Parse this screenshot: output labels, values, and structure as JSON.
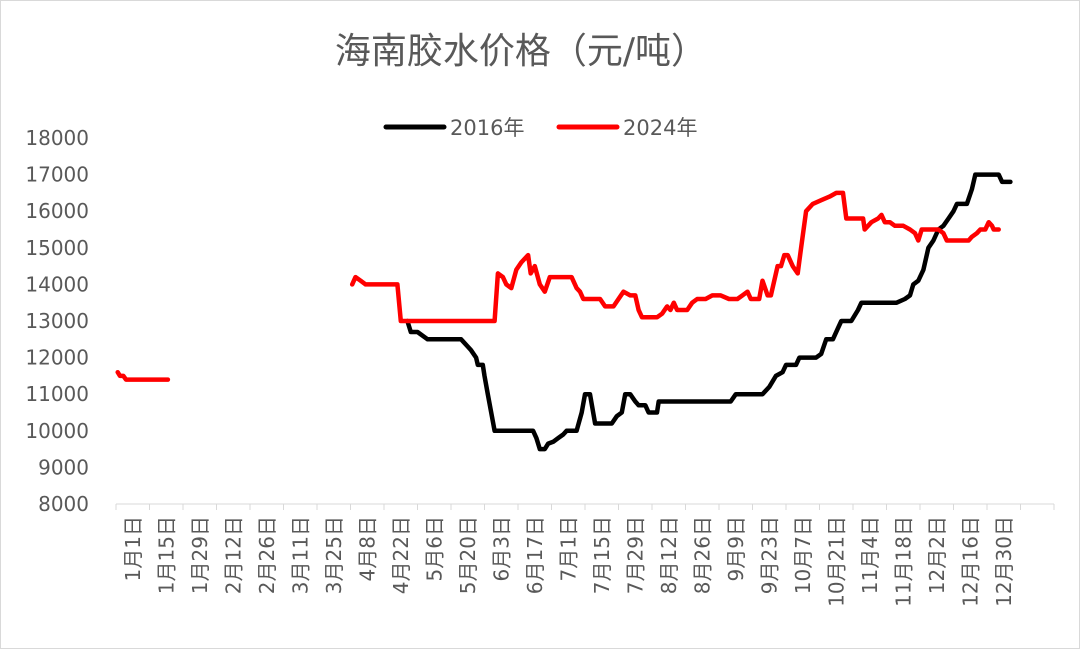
{
  "chart_data": {
    "type": "line",
    "title": "海南胶水价格（元/吨）",
    "xlabel": "",
    "ylabel": "",
    "ylim": [
      8000,
      18000
    ],
    "yticks": [
      8000,
      9000,
      10000,
      11000,
      12000,
      13000,
      14000,
      15000,
      16000,
      17000,
      18000
    ],
    "xlim": [
      0,
      28
    ],
    "x_unit": "dates, one slot per category",
    "categories": [
      "1月1日",
      "1月15日",
      "1月29日",
      "2月12日",
      "2月26日",
      "3月11日",
      "3月25日",
      "4月8日",
      "4月22日",
      "5月6日",
      "5月20日",
      "6月3日",
      "6月17日",
      "7月1日",
      "7月15日",
      "7月29日",
      "8月12日",
      "8月26日",
      "9月9日",
      "9月23日",
      "10月7日",
      "10月21日",
      "11月4日",
      "11月18日",
      "12月2日",
      "12月16日",
      "12月30日"
    ],
    "gridlines": false,
    "legend_position": "top",
    "series": [
      {
        "name": "2016年",
        "color": "#000000",
        "points": [
          [
            8.7,
            13000
          ],
          [
            8.8,
            12700
          ],
          [
            9.0,
            12700
          ],
          [
            9.3,
            12500
          ],
          [
            9.6,
            12500
          ],
          [
            10.0,
            12500
          ],
          [
            10.3,
            12500
          ],
          [
            10.5,
            12300
          ],
          [
            10.6,
            12200
          ],
          [
            10.75,
            12000
          ],
          [
            10.8,
            11800
          ],
          [
            10.95,
            11800
          ],
          [
            11.0,
            11500
          ],
          [
            11.1,
            11000
          ],
          [
            11.2,
            10500
          ],
          [
            11.3,
            10000
          ],
          [
            11.5,
            10000
          ],
          [
            11.9,
            10000
          ],
          [
            12.2,
            10000
          ],
          [
            12.45,
            10000
          ],
          [
            12.55,
            9800
          ],
          [
            12.65,
            9500
          ],
          [
            12.8,
            9500
          ],
          [
            12.9,
            9650
          ],
          [
            13.05,
            9700
          ],
          [
            13.2,
            9800
          ],
          [
            13.35,
            9900
          ],
          [
            13.45,
            10000
          ],
          [
            13.6,
            10000
          ],
          [
            13.75,
            10000
          ],
          [
            13.9,
            10500
          ],
          [
            14.0,
            11000
          ],
          [
            14.15,
            11000
          ],
          [
            14.3,
            10200
          ],
          [
            14.5,
            10200
          ],
          [
            14.8,
            10200
          ],
          [
            14.95,
            10400
          ],
          [
            15.1,
            10500
          ],
          [
            15.2,
            11000
          ],
          [
            15.35,
            11000
          ],
          [
            15.5,
            10800
          ],
          [
            15.6,
            10700
          ],
          [
            15.8,
            10700
          ],
          [
            15.9,
            10500
          ],
          [
            16.15,
            10500
          ],
          [
            16.2,
            10800
          ],
          [
            16.6,
            10800
          ],
          [
            17.2,
            10800
          ],
          [
            17.8,
            10800
          ],
          [
            18.35,
            10800
          ],
          [
            18.5,
            11000
          ],
          [
            19.0,
            11000
          ],
          [
            19.3,
            11000
          ],
          [
            19.5,
            11200
          ],
          [
            19.7,
            11500
          ],
          [
            19.9,
            11600
          ],
          [
            20.0,
            11800
          ],
          [
            20.3,
            11800
          ],
          [
            20.4,
            12000
          ],
          [
            20.9,
            12000
          ],
          [
            21.05,
            12100
          ],
          [
            21.2,
            12500
          ],
          [
            21.4,
            12500
          ],
          [
            21.55,
            12800
          ],
          [
            21.65,
            13000
          ],
          [
            21.95,
            13000
          ],
          [
            22.15,
            13300
          ],
          [
            22.25,
            13500
          ],
          [
            22.8,
            13500
          ],
          [
            23.3,
            13500
          ],
          [
            23.55,
            13600
          ],
          [
            23.7,
            13700
          ],
          [
            23.8,
            14000
          ],
          [
            23.95,
            14100
          ],
          [
            24.1,
            14400
          ],
          [
            24.25,
            15000
          ],
          [
            24.4,
            15200
          ],
          [
            24.55,
            15500
          ],
          [
            24.7,
            15600
          ],
          [
            24.85,
            15800
          ],
          [
            25.0,
            16000
          ],
          [
            25.1,
            16200
          ],
          [
            25.4,
            16200
          ],
          [
            25.55,
            16600
          ],
          [
            25.65,
            17000
          ],
          [
            26.0,
            17000
          ],
          [
            26.2,
            17000
          ],
          [
            26.35,
            17000
          ],
          [
            26.45,
            16800
          ],
          [
            26.7,
            16800
          ]
        ]
      },
      {
        "name": "2024年",
        "color": "#ff0000",
        "segments": [
          [
            [
              0.05,
              11600
            ],
            [
              0.12,
              11500
            ],
            [
              0.22,
              11500
            ],
            [
              0.3,
              11400
            ],
            [
              0.6,
              11400
            ],
            [
              1.0,
              11400
            ],
            [
              1.55,
              11400
            ]
          ],
          [
            [
              7.05,
              14000
            ],
            [
              7.15,
              14200
            ],
            [
              7.3,
              14100
            ],
            [
              7.45,
              14000
            ],
            [
              8.0,
              14000
            ],
            [
              8.4,
              14000
            ],
            [
              8.5,
              13000
            ],
            [
              9.0,
              13000
            ],
            [
              10.0,
              13000
            ],
            [
              11.3,
              13000
            ],
            [
              11.4,
              14300
            ],
            [
              11.55,
              14200
            ],
            [
              11.65,
              14000
            ],
            [
              11.8,
              13900
            ],
            [
              11.95,
              14400
            ],
            [
              12.1,
              14600
            ],
            [
              12.3,
              14800
            ],
            [
              12.38,
              14300
            ],
            [
              12.5,
              14500
            ],
            [
              12.65,
              14000
            ],
            [
              12.8,
              13800
            ],
            [
              12.95,
              14200
            ],
            [
              13.3,
              14200
            ],
            [
              13.6,
              14200
            ],
            [
              13.75,
              13900
            ],
            [
              13.85,
              13800
            ],
            [
              13.95,
              13600
            ],
            [
              14.1,
              13600
            ],
            [
              14.45,
              13600
            ],
            [
              14.6,
              13400
            ],
            [
              14.85,
              13400
            ],
            [
              15.0,
              13600
            ],
            [
              15.15,
              13800
            ],
            [
              15.35,
              13700
            ],
            [
              15.5,
              13700
            ],
            [
              15.6,
              13300
            ],
            [
              15.7,
              13100
            ],
            [
              15.95,
              13100
            ],
            [
              16.15,
              13100
            ],
            [
              16.3,
              13200
            ],
            [
              16.45,
              13400
            ],
            [
              16.55,
              13300
            ],
            [
              16.65,
              13500
            ],
            [
              16.75,
              13300
            ],
            [
              17.05,
              13300
            ],
            [
              17.2,
              13500
            ],
            [
              17.35,
              13600
            ],
            [
              17.6,
              13600
            ],
            [
              17.8,
              13700
            ],
            [
              18.05,
              13700
            ],
            [
              18.3,
              13600
            ],
            [
              18.55,
              13600
            ],
            [
              18.7,
              13700
            ],
            [
              18.85,
              13800
            ],
            [
              18.95,
              13600
            ],
            [
              19.2,
              13600
            ],
            [
              19.3,
              14100
            ],
            [
              19.45,
              13700
            ],
            [
              19.55,
              13700
            ],
            [
              19.75,
              14500
            ],
            [
              19.85,
              14500
            ],
            [
              19.95,
              14800
            ],
            [
              20.05,
              14800
            ],
            [
              20.2,
              14500
            ],
            [
              20.35,
              14300
            ],
            [
              20.45,
              15000
            ],
            [
              20.6,
              16000
            ],
            [
              20.8,
              16200
            ],
            [
              21.05,
              16300
            ],
            [
              21.3,
              16400
            ],
            [
              21.5,
              16500
            ],
            [
              21.7,
              16500
            ],
            [
              21.8,
              15800
            ],
            [
              22.0,
              15800
            ],
            [
              22.1,
              15800
            ],
            [
              22.3,
              15800
            ],
            [
              22.35,
              15500
            ],
            [
              22.55,
              15700
            ],
            [
              22.75,
              15800
            ],
            [
              22.85,
              15900
            ],
            [
              22.95,
              15700
            ],
            [
              23.1,
              15700
            ],
            [
              23.25,
              15600
            ],
            [
              23.5,
              15600
            ],
            [
              23.7,
              15500
            ],
            [
              23.85,
              15400
            ],
            [
              23.95,
              15200
            ],
            [
              24.05,
              15500
            ],
            [
              24.3,
              15500
            ],
            [
              24.55,
              15500
            ],
            [
              24.7,
              15400
            ],
            [
              24.8,
              15200
            ],
            [
              25.0,
              15200
            ],
            [
              25.45,
              15200
            ],
            [
              25.55,
              15300
            ],
            [
              25.7,
              15400
            ],
            [
              25.8,
              15500
            ],
            [
              25.95,
              15500
            ],
            [
              26.05,
              15700
            ],
            [
              26.15,
              15600
            ],
            [
              26.2,
              15500
            ],
            [
              26.35,
              15500
            ]
          ]
        ]
      }
    ]
  }
}
